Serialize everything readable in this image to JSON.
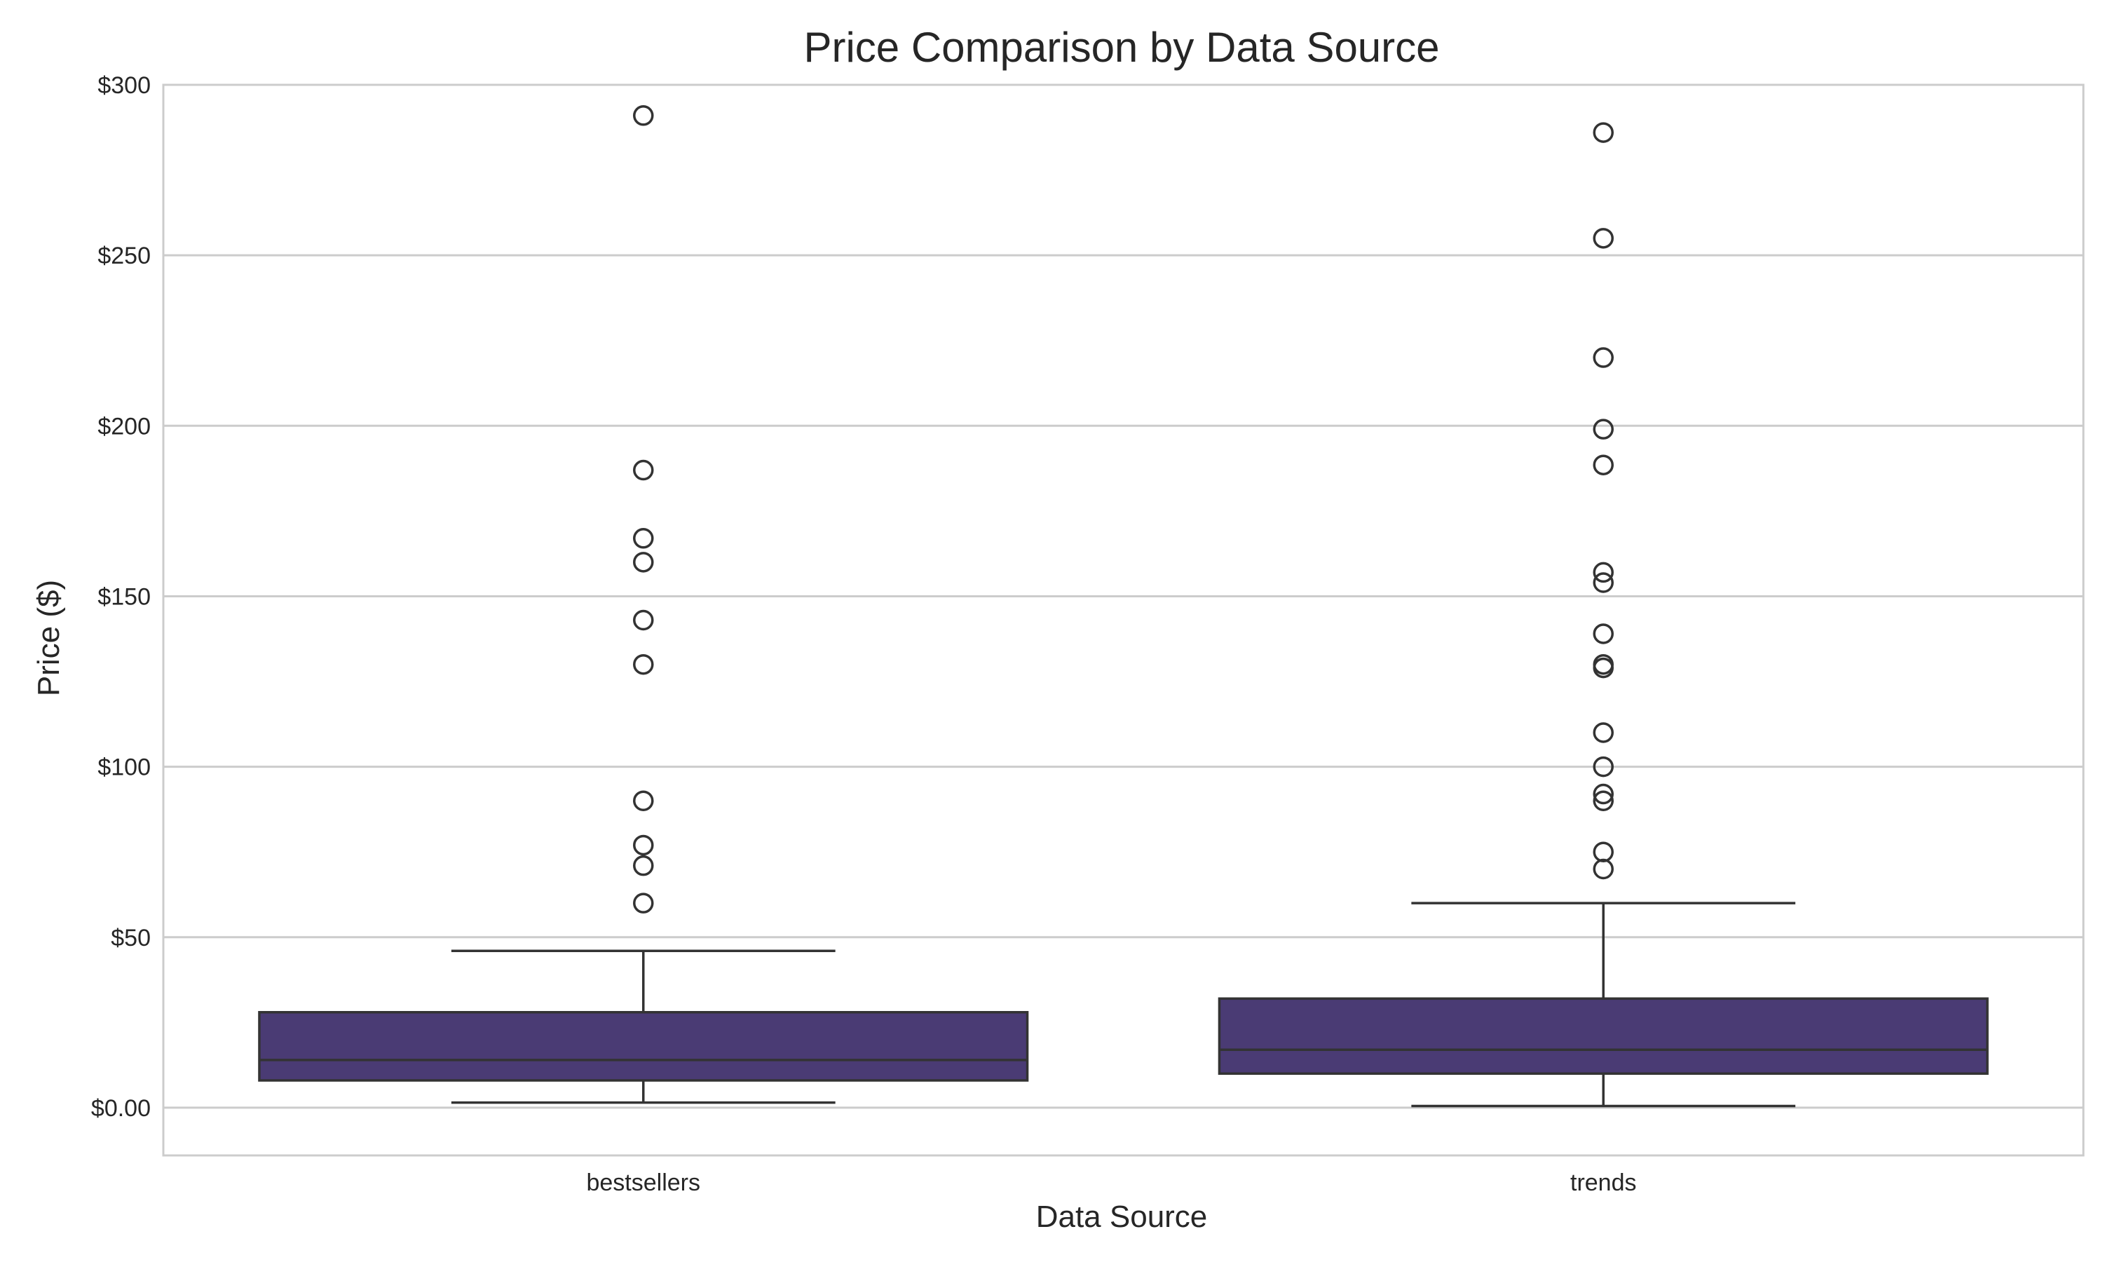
{
  "chart_data": {
    "type": "box",
    "title": "Price Comparison by Data Source",
    "xlabel": "Data Source",
    "ylabel": "Price ($)",
    "ylim": [
      -14,
      300
    ],
    "yticks": [
      0,
      50,
      100,
      150,
      200,
      250,
      300
    ],
    "ytick_labels": [
      "$0.00",
      "$50",
      "$100",
      "$150",
      "$200",
      "$250",
      "$300"
    ],
    "grid": true,
    "box_color": "#4a3b74",
    "edge_color": "#333333",
    "categories": [
      "bestsellers",
      "trends"
    ],
    "boxes": [
      {
        "category": "bestsellers",
        "whisker_low": 1.5,
        "q1": 8,
        "median": 14,
        "q3": 28,
        "whisker_high": 46,
        "outliers": [
          291,
          187,
          167,
          160,
          143,
          130,
          90,
          77,
          71,
          60
        ]
      },
      {
        "category": "trends",
        "whisker_low": 0.5,
        "q1": 10,
        "median": 17,
        "q3": 32,
        "whisker_high": 60,
        "outliers": [
          286,
          255,
          220,
          199,
          188.5,
          157,
          154,
          139,
          130,
          129,
          110,
          100,
          92,
          90,
          75,
          70
        ]
      }
    ]
  }
}
